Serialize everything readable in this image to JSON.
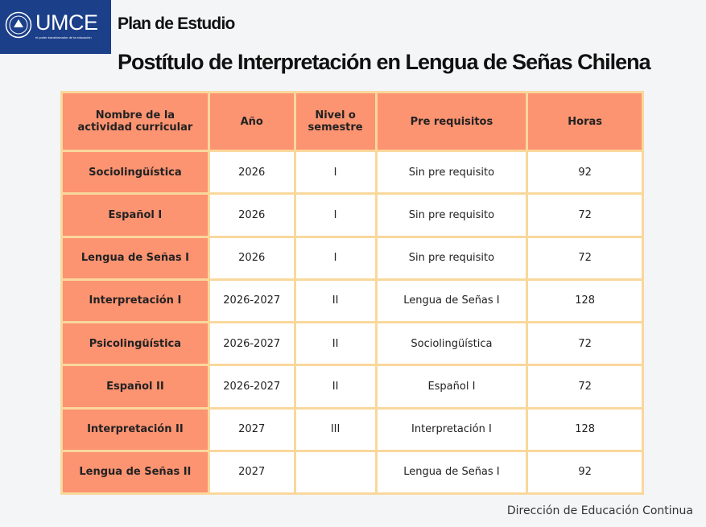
{
  "logo": {
    "name": "UMCE",
    "tagline": "el poder transformador de la educación"
  },
  "header": {
    "title": "Plan de Estudio",
    "subtitle": "Postítulo de Interpretación en Lengua de Señas Chilena"
  },
  "table": {
    "columns": [
      "Nombre de la actividad curricular",
      "Año",
      "Nivel o semestre",
      "Pre requisitos",
      "Horas"
    ],
    "rows": [
      [
        "Sociolingüística",
        "2026",
        "I",
        "Sin pre requisito",
        92
      ],
      [
        "Español I",
        "2026",
        "I",
        "Sin pre requisito",
        72
      ],
      [
        "Lengua de Señas I",
        "2026",
        "I",
        "Sin pre requisito",
        72
      ],
      [
        "Interpretación I",
        "2026-2027",
        "II",
        "Lengua de Señas I",
        128
      ],
      [
        "Psicolingüística",
        "2026-2027",
        "II",
        "Sociolingüística",
        72
      ],
      [
        "Español II",
        "2026-2027",
        "II",
        "Español I",
        72
      ],
      [
        "Interpretación II",
        "2027",
        "III",
        "Interpretación I",
        128
      ],
      [
        "Lengua de Señas II",
        "2027",
        null,
        "Lengua de Señas I",
        92
      ]
    ]
  },
  "footer": "Dirección de Educación Continua"
}
